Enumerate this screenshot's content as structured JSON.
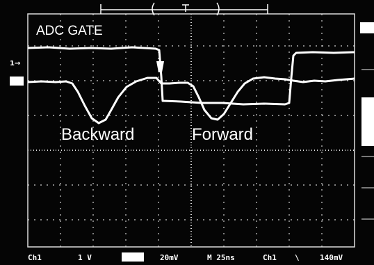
{
  "annotations": {
    "title": "ADC GATE",
    "backward": "Backward",
    "forward": "Forward"
  },
  "markers": {
    "channel": "1→"
  },
  "readout": {
    "channel": "Ch1",
    "volts_per_div": "1 V",
    "ref_scale": "20mV",
    "timebase": "M 25ns",
    "trigger_source": "Ch1",
    "trigger_slope": "\\",
    "trigger_level": "140mV"
  },
  "colors": {
    "background": "#050505",
    "trace": "#ffffff",
    "graticule": "#cfcfcf"
  }
}
